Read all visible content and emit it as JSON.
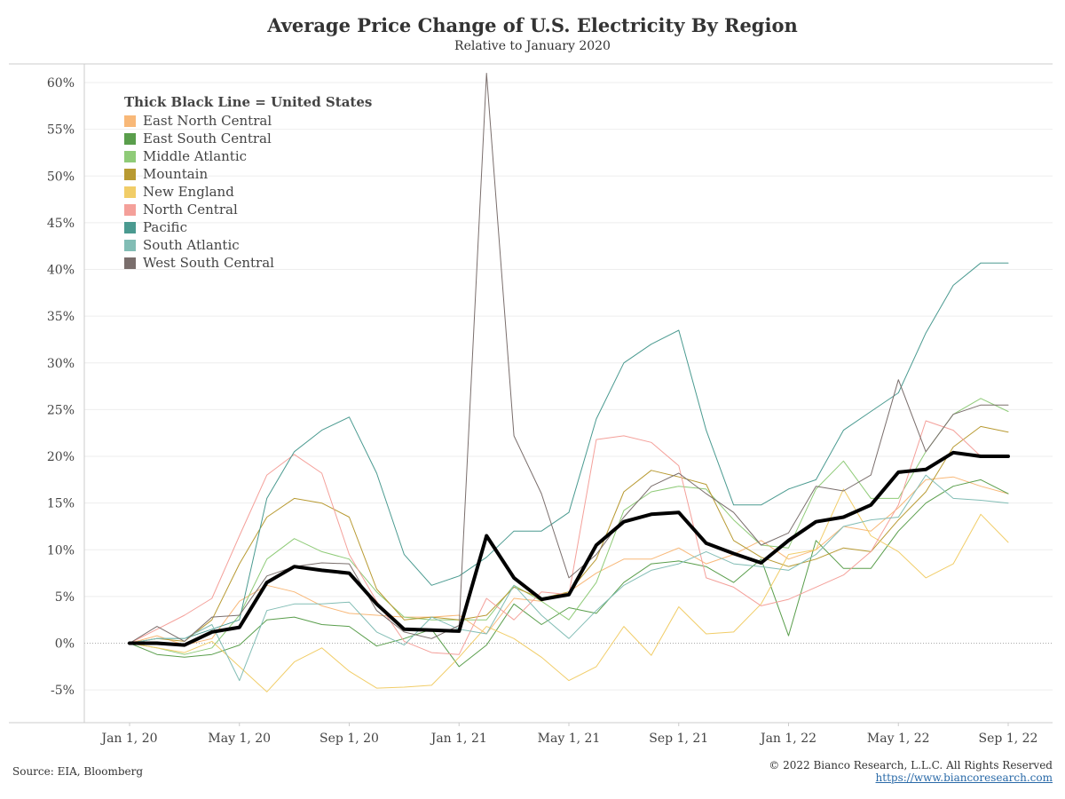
{
  "header": {
    "title": "Average Price Change of U.S. Electricity By Region",
    "subtitle": "Relative to January 2020"
  },
  "footer": {
    "source": "Source: EIA, Bloomberg",
    "copyright": "© 2022 Bianco Research, L.L.C. All Rights Reserved",
    "url": "https://www.biancoresearch.com"
  },
  "chart_data": {
    "type": "line",
    "title": "Average Price Change of U.S. Electricity By Region",
    "subtitle": "Relative to January 2020",
    "legend_title": "Thick Black Line = United States",
    "legend_position": "top-left",
    "xlabel": "",
    "ylabel": "",
    "ylim": [
      -8.5,
      62
    ],
    "yticks": [
      -5,
      0,
      5,
      10,
      15,
      20,
      25,
      30,
      35,
      40,
      45,
      50,
      55,
      60
    ],
    "ytick_labels": [
      "-5%",
      "0%",
      "5%",
      "10%",
      "15%",
      "20%",
      "25%",
      "30%",
      "35%",
      "40%",
      "45%",
      "50%",
      "55%",
      "60%"
    ],
    "x": [
      "2020-01",
      "2020-02",
      "2020-03",
      "2020-04",
      "2020-05",
      "2020-06",
      "2020-07",
      "2020-08",
      "2020-09",
      "2020-10",
      "2020-11",
      "2020-12",
      "2021-01",
      "2021-02",
      "2021-03",
      "2021-04",
      "2021-05",
      "2021-06",
      "2021-07",
      "2021-08",
      "2021-09",
      "2021-10",
      "2021-11",
      "2021-12",
      "2022-01",
      "2022-02",
      "2022-03",
      "2022-04",
      "2022-05",
      "2022-06",
      "2022-07",
      "2022-08",
      "2022-09"
    ],
    "xticks": [
      0,
      4,
      8,
      12,
      16,
      20,
      24,
      28,
      32
    ],
    "xtick_labels": [
      "Jan 1, 20",
      "May 1, 20",
      "Sep 1, 20",
      "Jan 1, 21",
      "May 1, 21",
      "Sep 1, 21",
      "Jan 1, 22",
      "May 1, 22",
      "Sep 1, 22"
    ],
    "grid": true,
    "zero_line": "dotted",
    "series": [
      {
        "name": "East North Central",
        "color": "#f8b878",
        "width": 1,
        "values": [
          0,
          0.8,
          -0.2,
          0.5,
          4.5,
          6.2,
          5.5,
          4.0,
          3.2,
          3.0,
          2.8,
          2.8,
          3.0,
          1.0,
          4.8,
          4.5,
          5.5,
          7.5,
          9.0,
          9.0,
          10.2,
          8.5,
          9.5,
          11.0,
          9.0,
          10.0,
          12.5,
          12.0,
          14.5,
          17.5,
          17.8,
          16.8,
          16.0
        ]
      },
      {
        "name": "East South Central",
        "color": "#5a9e4c",
        "width": 1,
        "values": [
          0,
          -1.2,
          -1.5,
          -1.2,
          -0.2,
          2.5,
          2.8,
          2.0,
          1.8,
          -0.3,
          0.5,
          1.5,
          -2.5,
          -0.2,
          4.2,
          2.0,
          3.8,
          3.2,
          6.5,
          8.5,
          8.8,
          8.2,
          6.5,
          9.0,
          0.8,
          11.0,
          8.0,
          8.0,
          12.0,
          15.0,
          16.8,
          17.5,
          16.0
        ]
      },
      {
        "name": "Middle Atlantic",
        "color": "#8fcb78",
        "width": 1,
        "values": [
          0,
          -0.5,
          -1.2,
          -0.5,
          3.0,
          9.0,
          11.2,
          9.8,
          9.0,
          5.5,
          2.8,
          2.5,
          2.5,
          2.5,
          6.2,
          4.5,
          2.5,
          6.5,
          14.2,
          16.2,
          16.8,
          16.5,
          13.2,
          10.5,
          10.2,
          16.5,
          19.5,
          15.5,
          15.5,
          20.5,
          24.5,
          26.2,
          24.8
        ]
      },
      {
        "name": "Mountain",
        "color": "#b89a32",
        "width": 1,
        "values": [
          0,
          0.5,
          0.2,
          2.5,
          8.5,
          13.5,
          15.5,
          15.0,
          13.5,
          5.8,
          2.5,
          2.8,
          2.5,
          3.0,
          6.0,
          4.8,
          5.5,
          9.0,
          16.2,
          18.5,
          17.8,
          17.0,
          11.0,
          9.2,
          8.2,
          9.0,
          10.2,
          9.8,
          13.2,
          16.2,
          21.0,
          23.2,
          22.6
        ]
      },
      {
        "name": "New England",
        "color": "#f1cd68",
        "width": 1,
        "values": [
          0,
          -0.5,
          -1.0,
          0.2,
          -2.5,
          -5.2,
          -2.0,
          -0.5,
          -3.0,
          -4.8,
          -4.7,
          -4.5,
          -1.5,
          1.8,
          0.5,
          -1.5,
          -4.0,
          -2.5,
          1.8,
          -1.3,
          3.9,
          1.0,
          1.2,
          4.2,
          9.5,
          10.0,
          16.5,
          11.5,
          9.8,
          7.0,
          8.5,
          13.8,
          10.8
        ]
      },
      {
        "name": "North Central",
        "color": "#f4a09a",
        "width": 1,
        "values": [
          0,
          1.5,
          3.0,
          4.8,
          11.5,
          18.0,
          20.2,
          18.2,
          9.5,
          4.5,
          0.2,
          -1.0,
          -1.2,
          4.8,
          2.5,
          5.5,
          5.2,
          21.8,
          22.2,
          21.5,
          19.0,
          7.0,
          6.0,
          4.0,
          4.7,
          6.0,
          7.3,
          9.8,
          14.8,
          23.8,
          22.8,
          20.0,
          20.0
        ]
      },
      {
        "name": "Pacific",
        "color": "#4a9a90",
        "width": 1,
        "values": [
          0,
          0.5,
          0.5,
          1.5,
          2.5,
          15.5,
          20.5,
          22.8,
          24.2,
          18.2,
          9.5,
          6.2,
          7.2,
          9.2,
          12.0,
          12.0,
          14.0,
          24.0,
          30.0,
          32.0,
          33.5,
          22.8,
          14.8,
          14.8,
          16.5,
          17.5,
          22.8,
          24.8,
          26.8,
          33.2,
          38.3,
          40.7,
          40.7
        ]
      },
      {
        "name": "South Atlantic",
        "color": "#82bdb5",
        "width": 1,
        "values": [
          0,
          0.5,
          0.5,
          2.0,
          -4.0,
          3.5,
          4.2,
          4.2,
          4.4,
          1.2,
          -0.2,
          2.8,
          1.5,
          1.0,
          6.2,
          3.0,
          0.5,
          3.5,
          6.2,
          7.8,
          8.5,
          9.8,
          8.5,
          8.2,
          7.8,
          9.5,
          12.5,
          13.2,
          13.5,
          18.0,
          15.5,
          15.3,
          15.0
        ]
      },
      {
        "name": "West South Central",
        "color": "#7a6e6c",
        "width": 1,
        "values": [
          0,
          1.8,
          0.2,
          2.8,
          3.0,
          7.2,
          8.2,
          8.6,
          8.5,
          3.5,
          1.2,
          0.5,
          1.9,
          61.0,
          22.2,
          16.0,
          7.0,
          9.5,
          13.5,
          16.8,
          18.2,
          16.0,
          14.0,
          10.5,
          11.8,
          16.8,
          16.3,
          18.0,
          28.2,
          20.5,
          24.5,
          25.5,
          25.5
        ]
      },
      {
        "name": "United States",
        "color": "#000000",
        "width": 4,
        "in_legend": false,
        "values": [
          0,
          0.0,
          -0.2,
          1.2,
          1.7,
          6.5,
          8.2,
          7.8,
          7.5,
          4.2,
          1.5,
          1.4,
          1.3,
          11.5,
          7.0,
          4.7,
          5.2,
          10.5,
          13.0,
          13.8,
          14.0,
          10.7,
          9.6,
          8.6,
          11.0,
          13.0,
          13.5,
          14.8,
          18.3,
          18.6,
          20.4,
          20.0,
          20.0
        ]
      }
    ]
  }
}
